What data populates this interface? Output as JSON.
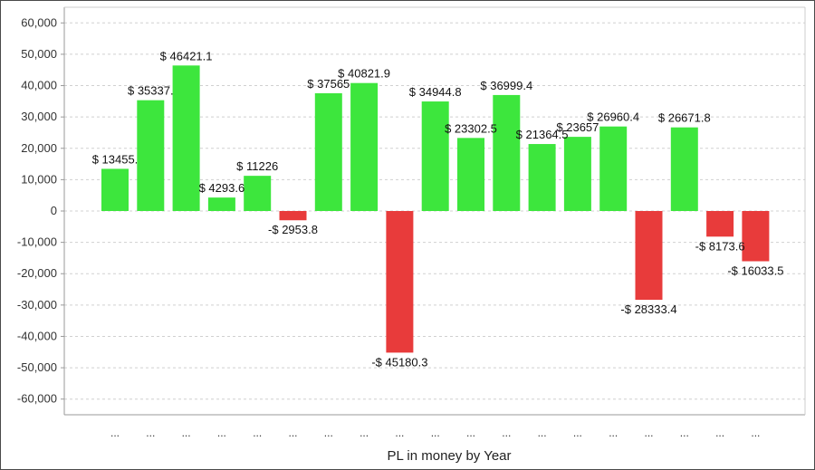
{
  "chart_data": {
    "type": "bar",
    "xlabel": "PL in money by Year",
    "ylabel": "",
    "ylim": [
      -65000,
      65000
    ],
    "yticks": [
      60000,
      50000,
      40000,
      30000,
      20000,
      10000,
      0,
      -10000,
      -20000,
      -30000,
      -40000,
      -50000,
      -60000
    ],
    "ytick_labels": [
      "60,000",
      "50,000",
      "40,000",
      "30,000",
      "20,000",
      "10,000",
      "0",
      "-10,000",
      "-20,000",
      "-30,000",
      "-40,000",
      "-50,000",
      "-60,000"
    ],
    "categories": [
      "...",
      "...",
      "...",
      "...",
      "...",
      "...",
      "...",
      "...",
      "...",
      "...",
      "...",
      "...",
      "...",
      "...",
      "...",
      "...",
      "...",
      "...",
      "..."
    ],
    "values": [
      13455,
      35337,
      46421.1,
      4293.6,
      11226,
      -2953.8,
      37565,
      40821.9,
      -45180.3,
      34944.8,
      23302.5,
      36999.4,
      21364.5,
      23657,
      26960.4,
      -28333.4,
      26671.8,
      -8173.6,
      -16033.5
    ],
    "data_labels": [
      "$ 13455.",
      "$ 35337.",
      "$ 46421.1",
      "$ 4293.6",
      "$ 11226",
      "-$ 2953.8",
      "$ 37565",
      "$ 40821.9",
      "-$ 45180.3",
      "$ 34944.8",
      "$ 23302.5",
      "$ 36999.4",
      "$ 21364.5",
      "$ 23657",
      "$ 26960.4",
      "-$ 28333.4",
      "$ 26671.8",
      "-$ 8173.6",
      "-$ 16033.5"
    ],
    "grid": true,
    "legend": "none",
    "colors": {
      "positive": "#3de63d",
      "negative": "#e83b3b",
      "grid": "#d0d0d0",
      "axis": "#999999"
    }
  }
}
